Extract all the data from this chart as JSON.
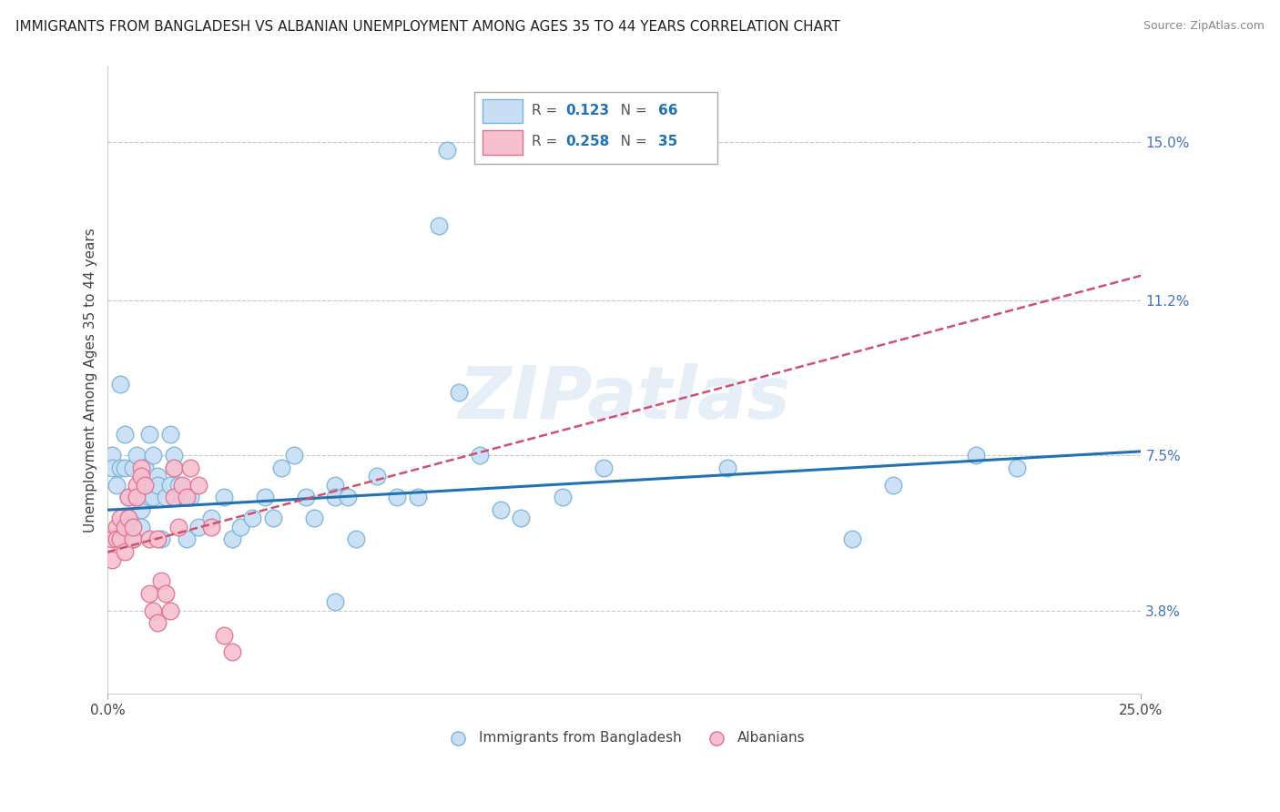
{
  "title": "IMMIGRANTS FROM BANGLADESH VS ALBANIAN UNEMPLOYMENT AMONG AGES 35 TO 44 YEARS CORRELATION CHART",
  "source": "Source: ZipAtlas.com",
  "ylabel_label": "Unemployment Among Ages 35 to 44 years",
  "legend_labels": [
    "Immigrants from Bangladesh",
    "Albanians"
  ],
  "xlim": [
    0.0,
    0.25
  ],
  "ylim": [
    0.018,
    0.168
  ],
  "ytick_vals": [
    0.038,
    0.075,
    0.112,
    0.15
  ],
  "ytick_labels": [
    "3.8%",
    "7.5%",
    "11.2%",
    "15.0%"
  ],
  "xtick_vals": [
    0.0,
    0.25
  ],
  "xtick_labels": [
    "0.0%",
    "25.0%"
  ],
  "background_color": "#ffffff",
  "grid_color": "#cccccc",
  "watermark_text": "ZIPatlas",
  "bd_face": "#c8def5",
  "bd_edge": "#7ab3d9",
  "al_face": "#f7c0d0",
  "al_edge": "#e07090",
  "bd_line_color": "#2171b5",
  "al_line_color": "#d05070",
  "bd_line_x": [
    0.0,
    0.25
  ],
  "bd_line_y": [
    0.062,
    0.076
  ],
  "al_line_x": [
    0.0,
    0.25
  ],
  "al_line_y": [
    0.052,
    0.118
  ],
  "legend_r1": "0.123",
  "legend_n1": "66",
  "legend_r2": "0.258",
  "legend_n2": "35",
  "bd_scatter": [
    [
      0.001,
      0.075
    ],
    [
      0.001,
      0.072
    ],
    [
      0.002,
      0.068
    ],
    [
      0.003,
      0.092
    ],
    [
      0.003,
      0.072
    ],
    [
      0.004,
      0.072
    ],
    [
      0.004,
      0.08
    ],
    [
      0.005,
      0.06
    ],
    [
      0.005,
      0.065
    ],
    [
      0.006,
      0.055
    ],
    [
      0.006,
      0.072
    ],
    [
      0.007,
      0.075
    ],
    [
      0.007,
      0.065
    ],
    [
      0.008,
      0.062
    ],
    [
      0.008,
      0.058
    ],
    [
      0.009,
      0.068
    ],
    [
      0.009,
      0.072
    ],
    [
      0.01,
      0.065
    ],
    [
      0.01,
      0.08
    ],
    [
      0.011,
      0.075
    ],
    [
      0.011,
      0.065
    ],
    [
      0.012,
      0.07
    ],
    [
      0.012,
      0.068
    ],
    [
      0.013,
      0.055
    ],
    [
      0.014,
      0.065
    ],
    [
      0.015,
      0.068
    ],
    [
      0.015,
      0.08
    ],
    [
      0.016,
      0.072
    ],
    [
      0.016,
      0.075
    ],
    [
      0.017,
      0.068
    ],
    [
      0.018,
      0.065
    ],
    [
      0.019,
      0.055
    ],
    [
      0.02,
      0.065
    ],
    [
      0.022,
      0.058
    ],
    [
      0.025,
      0.06
    ],
    [
      0.028,
      0.065
    ],
    [
      0.03,
      0.055
    ],
    [
      0.032,
      0.058
    ],
    [
      0.035,
      0.06
    ],
    [
      0.038,
      0.065
    ],
    [
      0.04,
      0.06
    ],
    [
      0.042,
      0.072
    ],
    [
      0.045,
      0.075
    ],
    [
      0.048,
      0.065
    ],
    [
      0.05,
      0.06
    ],
    [
      0.055,
      0.04
    ],
    [
      0.055,
      0.068
    ],
    [
      0.055,
      0.065
    ],
    [
      0.058,
      0.065
    ],
    [
      0.06,
      0.055
    ],
    [
      0.065,
      0.07
    ],
    [
      0.07,
      0.065
    ],
    [
      0.075,
      0.065
    ],
    [
      0.08,
      0.13
    ],
    [
      0.082,
      0.148
    ],
    [
      0.085,
      0.09
    ],
    [
      0.09,
      0.075
    ],
    [
      0.095,
      0.062
    ],
    [
      0.1,
      0.06
    ],
    [
      0.11,
      0.065
    ],
    [
      0.12,
      0.072
    ],
    [
      0.15,
      0.072
    ],
    [
      0.18,
      0.055
    ],
    [
      0.19,
      0.068
    ],
    [
      0.21,
      0.075
    ],
    [
      0.22,
      0.072
    ]
  ],
  "al_scatter": [
    [
      0.001,
      0.055
    ],
    [
      0.001,
      0.05
    ],
    [
      0.002,
      0.058
    ],
    [
      0.002,
      0.055
    ],
    [
      0.003,
      0.06
    ],
    [
      0.003,
      0.055
    ],
    [
      0.004,
      0.058
    ],
    [
      0.004,
      0.052
    ],
    [
      0.005,
      0.065
    ],
    [
      0.005,
      0.06
    ],
    [
      0.006,
      0.055
    ],
    [
      0.006,
      0.058
    ],
    [
      0.007,
      0.068
    ],
    [
      0.007,
      0.065
    ],
    [
      0.008,
      0.072
    ],
    [
      0.008,
      0.07
    ],
    [
      0.009,
      0.068
    ],
    [
      0.01,
      0.055
    ],
    [
      0.01,
      0.042
    ],
    [
      0.011,
      0.038
    ],
    [
      0.012,
      0.035
    ],
    [
      0.012,
      0.055
    ],
    [
      0.013,
      0.045
    ],
    [
      0.014,
      0.042
    ],
    [
      0.015,
      0.038
    ],
    [
      0.016,
      0.072
    ],
    [
      0.016,
      0.065
    ],
    [
      0.017,
      0.058
    ],
    [
      0.018,
      0.068
    ],
    [
      0.019,
      0.065
    ],
    [
      0.02,
      0.072
    ],
    [
      0.022,
      0.068
    ],
    [
      0.025,
      0.058
    ],
    [
      0.028,
      0.032
    ],
    [
      0.03,
      0.028
    ]
  ],
  "title_fontsize": 11,
  "source_fontsize": 9,
  "axis_label_fontsize": 11,
  "tick_fontsize": 11,
  "legend_fontsize": 11
}
